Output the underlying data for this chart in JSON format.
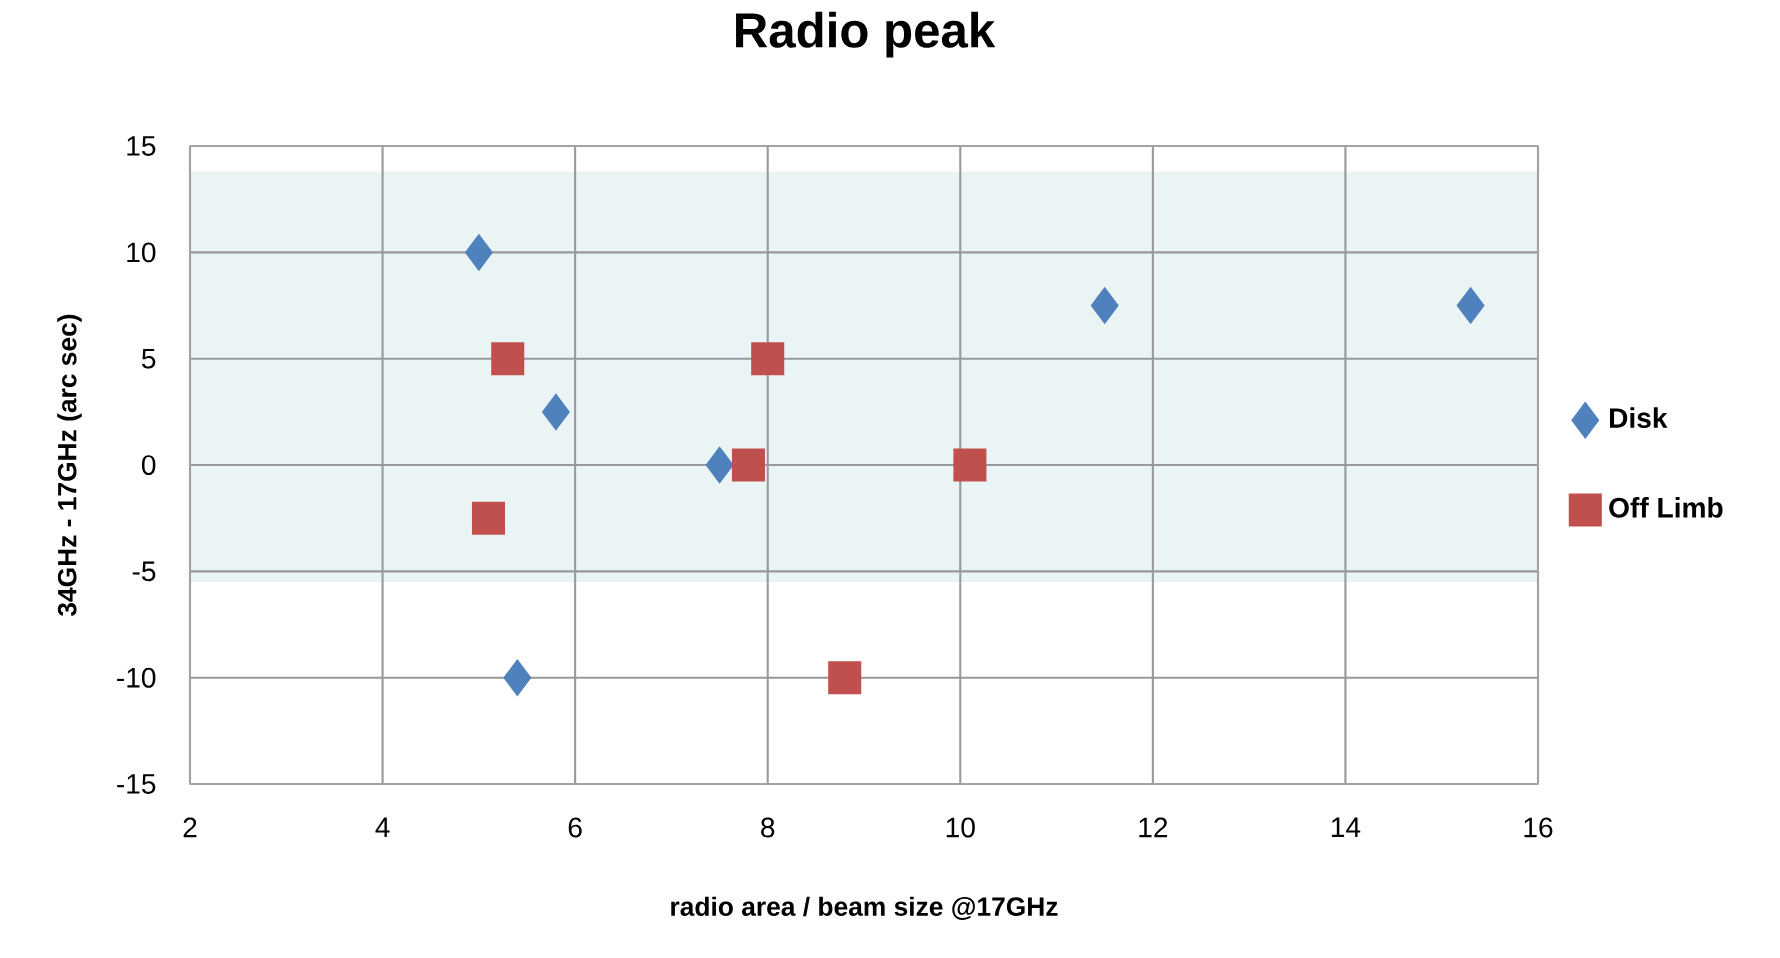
{
  "chart_data": {
    "type": "scatter",
    "title": "Radio peak",
    "xlabel": "radio area / beam size @17GHz",
    "ylabel": "34GHz - 17GHz (arc sec)",
    "xlim": [
      2,
      16
    ],
    "xticks": [
      2,
      4,
      6,
      8,
      10,
      12,
      14,
      16
    ],
    "ylim": [
      -15,
      15
    ],
    "yticks": [
      -15,
      -10,
      -5,
      0,
      5,
      10,
      15
    ],
    "grid": true,
    "legend": "right",
    "bands": [
      {
        "axis": "y",
        "from": -5.5,
        "to": 13.8,
        "color": "#eaf4f5"
      }
    ],
    "series": [
      {
        "name": "Disk",
        "color": "#4f81bd",
        "marker": "diamond",
        "x": [
          5.0,
          5.8,
          7.5,
          5.4,
          11.5,
          15.3
        ],
        "values": [
          10,
          2.5,
          0,
          -10,
          7.5,
          7.5
        ]
      },
      {
        "name": "Off Limb",
        "color": "#c0504d",
        "marker": "square",
        "x": [
          5.3,
          8.0,
          7.8,
          10.1,
          5.1,
          8.8
        ],
        "values": [
          5,
          5,
          0,
          0,
          -2.5,
          -10
        ]
      }
    ]
  }
}
